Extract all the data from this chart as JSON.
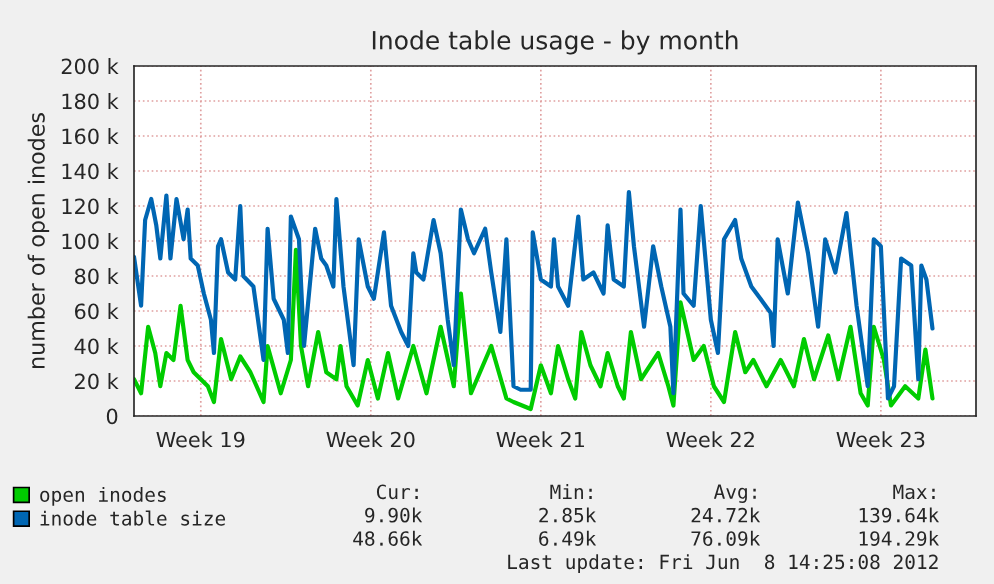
{
  "chart_data": {
    "type": "line",
    "title": "Inode table usage - by month",
    "ylabel": "number of open inodes",
    "xlim": [
      "2012-05-06T17:00",
      "2012-06-10T09:00"
    ],
    "xticks": [
      {
        "value": "2012-05-09T11:00",
        "label": "Week 19"
      },
      {
        "value": "2012-05-16T11:00",
        "label": "Week 20"
      },
      {
        "value": "2012-05-23T11:00",
        "label": "Week 21"
      },
      {
        "value": "2012-05-30T11:00",
        "label": "Week 22"
      },
      {
        "value": "2012-06-06T11:00",
        "label": "Week 23"
      }
    ],
    "ylim": [
      0,
      200
    ],
    "yticks": [
      0,
      {
        "value": 20,
        "label": "20 k"
      },
      {
        "value": 40,
        "label": "40 k"
      },
      {
        "value": 60,
        "label": "60 k"
      },
      {
        "value": 80,
        "label": "80 k"
      },
      {
        "value": 100,
        "label": "100 k"
      },
      {
        "value": 120,
        "label": "120 k"
      },
      {
        "value": 140,
        "label": "140 k"
      },
      {
        "value": 160,
        "label": "160 k"
      },
      {
        "value": 180,
        "label": "180 k"
      },
      {
        "value": 200,
        "label": "200 k"
      }
    ],
    "grid": true,
    "legend": "bottom left",
    "series": [
      {
        "name": "open inodes",
        "color": "#00cc00",
        "x": [
          "2012-05-06T17:00",
          "2012-05-07T00:00",
          "2012-05-07T07:00",
          "2012-05-07T14:00",
          "2012-05-07T19:00",
          "2012-05-08T01:00",
          "2012-05-08T08:00",
          "2012-05-08T15:00",
          "2012-05-08T22:00",
          "2012-05-09T04:00",
          "2012-05-09T18:00",
          "2012-05-10T00:00",
          "2012-05-10T07:00",
          "2012-05-10T17:00",
          "2012-05-11T02:00",
          "2012-05-11T12:00",
          "2012-05-12T01:00",
          "2012-05-12T05:00",
          "2012-05-12T18:00",
          "2012-05-13T04:00",
          "2012-05-13T09:00",
          "2012-05-13T14:00",
          "2012-05-13T21:00",
          "2012-05-14T07:00",
          "2012-05-14T15:00",
          "2012-05-15T01:00",
          "2012-05-15T05:00",
          "2012-05-15T11:00",
          "2012-05-15T22:00",
          "2012-05-16T08:00",
          "2012-05-16T18:00",
          "2012-05-17T04:00",
          "2012-05-17T14:00",
          "2012-05-18T05:00",
          "2012-05-18T18:00",
          "2012-05-19T08:00",
          "2012-05-19T21:00",
          "2012-05-20T04:00",
          "2012-05-20T14:00",
          "2012-05-21T10:00",
          "2012-05-22T01:00",
          "2012-05-22T08:00",
          "2012-05-23T01:00",
          "2012-05-23T11:00",
          "2012-05-23T21:00",
          "2012-05-24T04:00",
          "2012-05-24T14:00",
          "2012-05-24T21:00",
          "2012-05-25T03:00",
          "2012-05-25T12:00",
          "2012-05-25T22:00",
          "2012-05-26T05:00",
          "2012-05-26T15:00",
          "2012-05-26T21:00",
          "2012-05-27T04:00",
          "2012-05-27T14:00",
          "2012-05-28T07:00",
          "2012-05-28T17:00",
          "2012-05-28T22:00",
          "2012-05-29T05:00",
          "2012-05-29T18:00",
          "2012-05-30T04:00",
          "2012-05-30T14:00",
          "2012-05-31T00:00",
          "2012-05-31T11:00",
          "2012-05-31T21:00",
          "2012-06-01T05:00",
          "2012-06-01T18:00",
          "2012-06-02T08:00",
          "2012-06-02T21:00",
          "2012-06-03T07:00",
          "2012-06-03T17:00",
          "2012-06-04T07:00",
          "2012-06-04T17:00",
          "2012-06-05T05:00",
          "2012-06-05T15:00",
          "2012-06-05T22:00",
          "2012-06-06T04:00",
          "2012-06-06T14:00",
          "2012-06-06T21:00",
          "2012-06-07T11:00",
          "2012-06-08T00:00",
          "2012-06-08T07:00",
          "2012-06-08T14:00"
        ],
        "values": [
          21,
          13,
          51,
          36,
          17,
          36,
          32,
          63,
          32,
          25,
          17,
          8,
          44,
          21,
          34,
          25,
          8,
          40,
          13,
          32,
          95,
          40,
          17,
          48,
          25,
          21,
          40,
          17,
          6,
          32,
          10,
          36,
          10,
          40,
          13,
          51,
          17,
          70,
          13,
          40,
          10,
          8,
          4,
          29,
          13,
          40,
          21,
          10,
          48,
          29,
          17,
          36,
          17,
          10,
          48,
          21,
          36,
          17,
          6,
          65,
          32,
          40,
          17,
          8,
          48,
          25,
          32,
          17,
          32,
          17,
          44,
          21,
          46,
          21,
          51,
          13,
          6,
          51,
          32,
          6,
          17,
          10,
          38,
          10
        ]
      },
      {
        "name": "inode table size",
        "color": "#0066b3",
        "x": [
          "2012-05-06T17:00",
          "2012-05-07T00:00",
          "2012-05-07T04:00",
          "2012-05-07T10:00",
          "2012-05-07T15:00",
          "2012-05-07T19:00",
          "2012-05-08T01:00",
          "2012-05-08T05:00",
          "2012-05-08T11:00",
          "2012-05-08T18:00",
          "2012-05-08T22:00",
          "2012-05-09T01:00",
          "2012-05-09T08:00",
          "2012-05-09T14:00",
          "2012-05-09T21:00",
          "2012-05-10T00:00",
          "2012-05-10T04:00",
          "2012-05-10T07:00",
          "2012-05-10T14:00",
          "2012-05-10T21:00",
          "2012-05-11T02:00",
          "2012-05-11T05:00",
          "2012-05-11T15:00",
          "2012-05-12T01:00",
          "2012-05-12T05:00",
          "2012-05-12T11:00",
          "2012-05-12T21:00",
          "2012-05-13T01:00",
          "2012-05-13T04:00",
          "2012-05-13T12:00",
          "2012-05-13T17:00",
          "2012-05-14T04:00",
          "2012-05-14T10:00",
          "2012-05-14T15:00",
          "2012-05-14T22:00",
          "2012-05-15T01:00",
          "2012-05-15T08:00",
          "2012-05-15T18:00",
          "2012-05-15T23:00",
          "2012-05-16T08:00",
          "2012-05-16T14:00",
          "2012-05-17T00:00",
          "2012-05-17T07:00",
          "2012-05-17T17:00",
          "2012-05-18T00:00",
          "2012-05-18T05:00",
          "2012-05-18T08:00",
          "2012-05-18T15:00",
          "2012-05-19T01:00",
          "2012-05-19T08:00",
          "2012-05-19T15:00",
          "2012-05-19T21:00",
          "2012-05-20T04:00",
          "2012-05-20T11:00",
          "2012-05-20T17:00",
          "2012-05-21T04:00",
          "2012-05-21T10:00",
          "2012-05-21T19:00",
          "2012-05-22T01:00",
          "2012-05-22T08:00",
          "2012-05-22T15:00",
          "2012-05-23T01:00",
          "2012-05-23T03:00",
          "2012-05-23T11:00",
          "2012-05-23T21:00",
          "2012-05-24T00:00",
          "2012-05-24T04:00",
          "2012-05-24T14:00",
          "2012-05-25T00:00",
          "2012-05-25T05:00",
          "2012-05-25T15:00",
          "2012-05-26T01:00",
          "2012-05-26T05:00",
          "2012-05-26T11:00",
          "2012-05-26T21:00",
          "2012-05-27T02:00",
          "2012-05-27T07:00",
          "2012-05-27T17:00",
          "2012-05-28T02:00",
          "2012-05-28T10:00",
          "2012-05-28T19:00",
          "2012-05-28T22:00",
          "2012-05-29T05:00",
          "2012-05-29T08:00",
          "2012-05-29T18:00",
          "2012-05-30T01:00",
          "2012-05-30T11:00",
          "2012-05-30T18:00",
          "2012-05-31T00:00",
          "2012-05-31T11:00",
          "2012-05-31T17:00",
          "2012-06-01T03:00",
          "2012-06-01T12:00",
          "2012-06-01T22:00",
          "2012-06-02T01:00",
          "2012-06-02T05:00",
          "2012-06-02T15:00",
          "2012-06-03T01:00",
          "2012-06-03T11:00",
          "2012-06-03T21:00",
          "2012-06-04T04:00",
          "2012-06-04T14:00",
          "2012-06-05T01:00",
          "2012-06-05T11:00",
          "2012-06-05T22:00",
          "2012-06-06T04:00",
          "2012-06-06T11:00",
          "2012-06-06T18:00",
          "2012-06-07T00:00",
          "2012-06-07T07:00",
          "2012-06-07T17:00",
          "2012-06-08T00:00",
          "2012-06-08T03:00",
          "2012-06-08T08:00",
          "2012-06-08T14:00"
        ],
        "values": [
          91,
          63,
          112,
          124,
          109,
          90,
          126,
          90,
          124,
          101,
          118,
          90,
          86,
          70,
          55,
          36,
          97,
          101,
          82,
          78,
          120,
          80,
          74,
          32,
          107,
          67,
          55,
          36,
          114,
          101,
          40,
          107,
          90,
          86,
          74,
          124,
          74,
          29,
          101,
          74,
          67,
          105,
          63,
          48,
          40,
          93,
          82,
          78,
          112,
          93,
          55,
          29,
          118,
          101,
          93,
          107,
          82,
          48,
          101,
          17,
          15,
          15,
          105,
          78,
          74,
          101,
          74,
          63,
          114,
          78,
          82,
          70,
          109,
          78,
          74,
          128,
          97,
          51,
          97,
          74,
          51,
          13,
          118,
          70,
          63,
          120,
          55,
          36,
          101,
          112,
          90,
          74,
          67,
          59,
          40,
          101,
          70,
          122,
          93,
          51,
          101,
          82,
          116,
          63,
          17,
          101,
          97,
          10,
          17,
          90,
          86,
          21,
          86,
          78,
          50
        ]
      }
    ],
    "annotations": [
      "Cur:",
      "Min:",
      "Avg:",
      "Max:",
      "9.90k",
      "2.85k",
      "24.72k",
      "139.64k",
      "48.66k",
      "6.49k",
      "76.09k",
      "194.29k",
      "Last update: Fri Jun  8 14:25:08 2012"
    ]
  }
}
